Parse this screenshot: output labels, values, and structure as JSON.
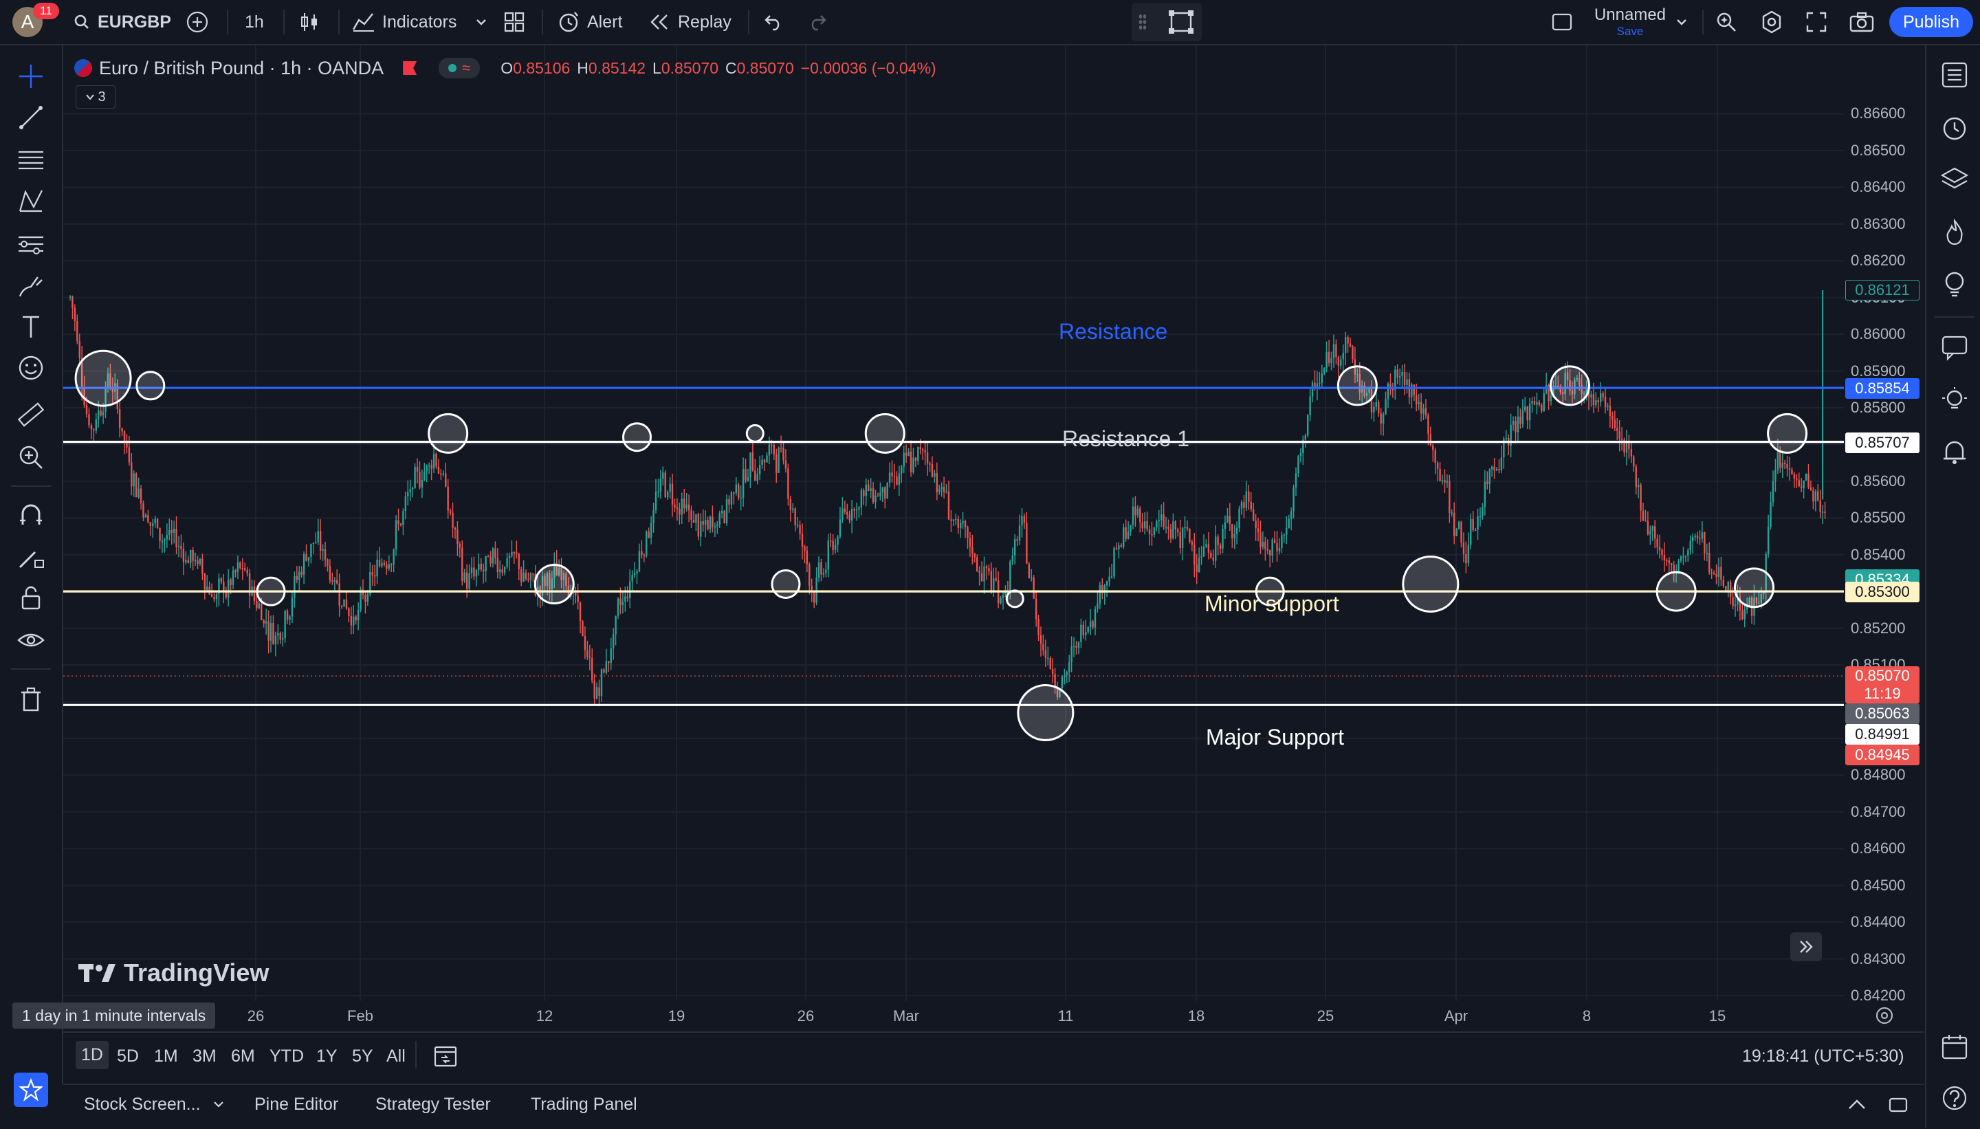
{
  "header": {
    "avatar_letter": "A",
    "notification_count": "11",
    "symbol": "EURGBP",
    "interval": "1h",
    "indicators_label": "Indicators",
    "alert_label": "Alert",
    "replay_label": "Replay",
    "layout_name": "Unnamed",
    "save_label": "Save",
    "publish_label": "Publish"
  },
  "legend": {
    "title": "Euro / British Pound · 1h · OANDA",
    "open_label": "O",
    "open": "0.85106",
    "high_label": "H",
    "high": "0.85142",
    "low_label": "L",
    "low": "0.85070",
    "close_label": "C",
    "close": "0.85070",
    "change": "−0.00036 (−0.04%)",
    "collapse_count": "3"
  },
  "annotations": {
    "resistance": "Resistance",
    "resistance1": "Resistance 1",
    "minor_support": "Minor support",
    "major_support": "Major Support"
  },
  "colors": {
    "background": "#131722",
    "up_candle": "#26a69a",
    "down_candle": "#ef5350",
    "resistance_line": "#2962ff",
    "minor_support_line": "#fff3c4",
    "accent": "#2962ff"
  },
  "chart_data": {
    "type": "candlestick",
    "title": "Euro / British Pound · 1h · OANDA",
    "ylim": [
      0.842,
      0.867
    ],
    "y_ticks": [
      "0.86600",
      "0.86500",
      "0.86400",
      "0.86300",
      "0.86200",
      "0.86100",
      "0.86000",
      "0.85900",
      "0.85800",
      "0.85700",
      "0.85600",
      "0.85500",
      "0.85400",
      "0.85300",
      "0.85200",
      "0.85100",
      "0.85000",
      "0.84900",
      "0.84800",
      "0.84700",
      "0.84600",
      "0.84500",
      "0.84400",
      "0.84300",
      "0.84200"
    ],
    "x_ticks": [
      "26",
      "Feb",
      "12",
      "19",
      "26",
      "Mar",
      "11",
      "18",
      "25",
      "Apr",
      "8",
      "15"
    ],
    "horizontal_lines": [
      {
        "label": "Resistance",
        "price": 0.85854,
        "color": "#2962ff"
      },
      {
        "label": "Resistance 1",
        "price": 0.85707,
        "color": "#ffffff"
      },
      {
        "label": "Minor support",
        "price": 0.853,
        "color": "#fff3c4"
      },
      {
        "label": "Major Support",
        "price": 0.84991,
        "color": "#ffffff"
      }
    ],
    "price_labels": [
      {
        "text": "0.86121",
        "bg": "#131722",
        "fg": "#26a69a",
        "border": "#26a69a"
      },
      {
        "text": "0.85854",
        "bg": "#2962ff",
        "fg": "#ffffff",
        "border": "#2962ff"
      },
      {
        "text": "0.85707",
        "bg": "#ffffff",
        "fg": "#131722",
        "border": "#ffffff"
      },
      {
        "text": "0.85334",
        "bg": "#26a69a",
        "fg": "#ffffff",
        "border": "#26a69a"
      },
      {
        "text": "0.85300",
        "bg": "#fff3c4",
        "fg": "#131722",
        "border": "#fff3c4"
      },
      {
        "text": "0.85070",
        "sub": "11:19",
        "bg": "#ef5350",
        "fg": "#ffffff",
        "border": "#ef5350"
      },
      {
        "text": "0.85063",
        "bg": "#5d606b",
        "fg": "#ffffff",
        "border": "#5d606b"
      },
      {
        "text": "0.84991",
        "bg": "#ffffff",
        "fg": "#131722",
        "border": "#ffffff"
      },
      {
        "text": "0.84945",
        "bg": "#ef5350",
        "fg": "#ffffff",
        "border": "#ef5350"
      }
    ],
    "approx_path": [
      [
        0,
        0.861
      ],
      [
        8,
        0.8572
      ],
      [
        16,
        0.859
      ],
      [
        24,
        0.8565
      ],
      [
        34,
        0.8548
      ],
      [
        50,
        0.854
      ],
      [
        62,
        0.8528
      ],
      [
        72,
        0.8535
      ],
      [
        86,
        0.8518
      ],
      [
        102,
        0.8545
      ],
      [
        120,
        0.8522
      ],
      [
        138,
        0.8548
      ],
      [
        154,
        0.857
      ],
      [
        166,
        0.8532
      ],
      [
        184,
        0.854
      ],
      [
        196,
        0.853
      ],
      [
        210,
        0.8536
      ],
      [
        222,
        0.85
      ],
      [
        232,
        0.8525
      ],
      [
        250,
        0.856
      ],
      [
        268,
        0.8545
      ],
      [
        288,
        0.8565
      ],
      [
        300,
        0.8568
      ],
      [
        314,
        0.853
      ],
      [
        330,
        0.8555
      ],
      [
        348,
        0.856
      ],
      [
        362,
        0.8568
      ],
      [
        378,
        0.8542
      ],
      [
        394,
        0.8528
      ],
      [
        402,
        0.8548
      ],
      [
        410,
        0.8517
      ],
      [
        420,
        0.8505
      ],
      [
        434,
        0.853
      ],
      [
        450,
        0.855
      ],
      [
        468,
        0.8545
      ],
      [
        482,
        0.854
      ],
      [
        498,
        0.8555
      ],
      [
        506,
        0.8538
      ],
      [
        516,
        0.855
      ],
      [
        524,
        0.8582
      ],
      [
        538,
        0.86
      ],
      [
        550,
        0.8578
      ],
      [
        566,
        0.859
      ],
      [
        580,
        0.856
      ],
      [
        590,
        0.854
      ],
      [
        604,
        0.857
      ],
      [
        618,
        0.858
      ],
      [
        632,
        0.8588
      ],
      [
        650,
        0.858
      ],
      [
        664,
        0.8555
      ],
      [
        676,
        0.8535
      ],
      [
        690,
        0.8545
      ],
      [
        700,
        0.853
      ],
      [
        714,
        0.8525
      ],
      [
        722,
        0.8565
      ],
      [
        734,
        0.856
      ],
      [
        744,
        0.8546
      ]
    ],
    "bar_count": 744,
    "highlight_circles": [
      {
        "bar": 14,
        "price": 0.8588,
        "r": "lg"
      },
      {
        "bar": 34,
        "price": 0.8586,
        "r": "sm"
      },
      {
        "bar": 160,
        "price": 0.8573,
        "r": "md"
      },
      {
        "bar": 240,
        "price": 0.8572,
        "r": "sm"
      },
      {
        "bar": 290,
        "price": 0.8573,
        "r": "xs"
      },
      {
        "bar": 345,
        "price": 0.8573,
        "r": "md"
      },
      {
        "bar": 85,
        "price": 0.853,
        "r": "sm"
      },
      {
        "bar": 205,
        "price": 0.8532,
        "r": "md"
      },
      {
        "bar": 303,
        "price": 0.8532,
        "r": "sm"
      },
      {
        "bar": 400,
        "price": 0.8528,
        "r": "xs"
      },
      {
        "bar": 413,
        "price": 0.8497,
        "r": "lg"
      },
      {
        "bar": 508,
        "price": 0.853,
        "r": "sm"
      },
      {
        "bar": 545,
        "price": 0.8586,
        "r": "md"
      },
      {
        "bar": 576,
        "price": 0.8532,
        "r": "lg"
      },
      {
        "bar": 635,
        "price": 0.8586,
        "r": "md"
      },
      {
        "bar": 680,
        "price": 0.853,
        "r": "md"
      },
      {
        "bar": 713,
        "price": 0.8531,
        "r": "md"
      },
      {
        "bar": 727,
        "price": 0.8573,
        "r": "md"
      }
    ]
  },
  "watermark": "TradingView",
  "tooltip": "1 day in 1 minute intervals",
  "ranges": [
    "1D",
    "5D",
    "1M",
    "3M",
    "6M",
    "YTD",
    "1Y",
    "5Y",
    "All"
  ],
  "clock": "19:18:41 (UTC+5:30)",
  "footer_tabs": [
    "Stock Screen...",
    "Pine Editor",
    "Strategy Tester",
    "Trading Panel"
  ]
}
